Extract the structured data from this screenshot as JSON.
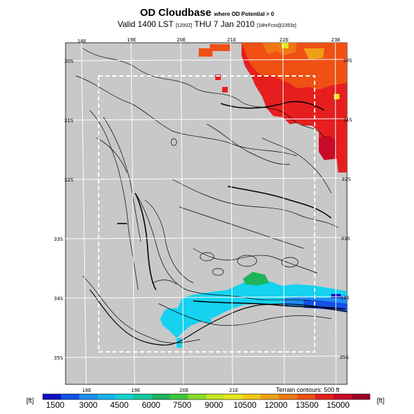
{
  "header": {
    "title": "OD Cloudbase",
    "title_note": "where OD Potential > 0",
    "valid_prefix": "Valid 1400 LST",
    "valid_code": "[1200Z]",
    "valid_date": "THU 7 Jan 2010",
    "run_tag": "[18hrFcst@2353z]"
  },
  "map": {
    "lon_labels_top": [
      "18E",
      "19E",
      "20E",
      "21E",
      "22E",
      "23E"
    ],
    "lon_labels_bottom": [
      "18E",
      "19E",
      "20E",
      "21E"
    ],
    "lat_labels_left": [
      "30S",
      "31S",
      "32S",
      "33S",
      "34S",
      "35S"
    ],
    "lat_labels_right": [
      "30S",
      "31S",
      "32S",
      "33S",
      "34S",
      "35S"
    ],
    "terrain_note": "Terrain contours: 500 ft",
    "land_color": "#c8c8c8"
  },
  "colorbar": {
    "unit_left": "[ft]",
    "unit_right": "[ft]",
    "tick_labels": [
      "1500",
      "3000",
      "4500",
      "6000",
      "7500",
      "9000",
      "10500",
      "12000",
      "13500",
      "15000"
    ],
    "colors": [
      "#1010c8",
      "#1450e6",
      "#1e8cf0",
      "#14b4f0",
      "#14d2d2",
      "#14c8a0",
      "#1eb45a",
      "#3cc83c",
      "#8cdc28",
      "#c8e61e",
      "#e6e61e",
      "#f0c814",
      "#f0a014",
      "#f07814",
      "#f05014",
      "#e61e1e",
      "#c80a28",
      "#a00028"
    ]
  }
}
